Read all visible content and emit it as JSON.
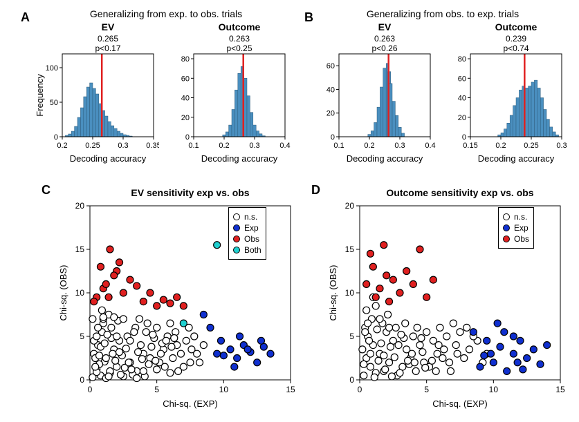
{
  "colors": {
    "bar_fill": "#4a8fbf",
    "bar_edge": "#2c5a7a",
    "vline": "#e02020",
    "ns_fill": "#ffffff",
    "exp_fill": "#1030d0",
    "obs_fill": "#e02020",
    "both_fill": "#20d0d0",
    "axis": "#000000"
  },
  "panelA": {
    "label": "A",
    "title": "Generalizing from exp. to obs. trials",
    "ev": {
      "subtitle": "EV",
      "stat1": "0.265",
      "stat2": "p<0.17",
      "xlabel": "Decoding accuracy",
      "ylabel": "Frequency",
      "xlim": [
        0.2,
        0.35
      ],
      "xticks": [
        0.2,
        0.25,
        0.3,
        0.35
      ],
      "ylim": [
        0,
        120
      ],
      "yticks": [
        0,
        50,
        100
      ],
      "vline": 0.265,
      "bins": [
        {
          "x": 0.205,
          "h": 2
        },
        {
          "x": 0.21,
          "h": 4
        },
        {
          "x": 0.215,
          "h": 8
        },
        {
          "x": 0.22,
          "h": 15
        },
        {
          "x": 0.225,
          "h": 28
        },
        {
          "x": 0.23,
          "h": 42
        },
        {
          "x": 0.235,
          "h": 58
        },
        {
          "x": 0.24,
          "h": 72
        },
        {
          "x": 0.245,
          "h": 78
        },
        {
          "x": 0.25,
          "h": 70
        },
        {
          "x": 0.255,
          "h": 62
        },
        {
          "x": 0.26,
          "h": 48
        },
        {
          "x": 0.265,
          "h": 38
        },
        {
          "x": 0.27,
          "h": 30
        },
        {
          "x": 0.275,
          "h": 22
        },
        {
          "x": 0.28,
          "h": 16
        },
        {
          "x": 0.285,
          "h": 12
        },
        {
          "x": 0.29,
          "h": 8
        },
        {
          "x": 0.295,
          "h": 5
        },
        {
          "x": 0.3,
          "h": 3
        },
        {
          "x": 0.305,
          "h": 2
        },
        {
          "x": 0.31,
          "h": 1
        }
      ],
      "bin_width": 0.005
    },
    "outcome": {
      "subtitle": "Outcome",
      "stat1": "0.263",
      "stat2": "p<0.25",
      "xlabel": "Decoding accuracy",
      "xlim": [
        0.1,
        0.4
      ],
      "xticks": [
        0.1,
        0.2,
        0.3,
        0.4
      ],
      "ylim": [
        0,
        85
      ],
      "yticks": [
        0,
        20,
        40,
        60,
        80
      ],
      "vline": 0.263,
      "bins": [
        {
          "x": 0.195,
          "h": 2
        },
        {
          "x": 0.205,
          "h": 5
        },
        {
          "x": 0.215,
          "h": 12
        },
        {
          "x": 0.225,
          "h": 28
        },
        {
          "x": 0.235,
          "h": 48
        },
        {
          "x": 0.245,
          "h": 65
        },
        {
          "x": 0.255,
          "h": 72
        },
        {
          "x": 0.265,
          "h": 60
        },
        {
          "x": 0.275,
          "h": 42
        },
        {
          "x": 0.285,
          "h": 25
        },
        {
          "x": 0.295,
          "h": 12
        },
        {
          "x": 0.305,
          "h": 6
        },
        {
          "x": 0.315,
          "h": 3
        },
        {
          "x": 0.325,
          "h": 1
        }
      ],
      "bin_width": 0.01
    }
  },
  "panelB": {
    "label": "B",
    "title": "Generalizing from obs. to exp. trials",
    "ev": {
      "subtitle": "EV",
      "stat1": "0.263",
      "stat2": "p<0.26",
      "xlabel": "Decoding accuracy",
      "xlim": [
        0.1,
        0.4
      ],
      "xticks": [
        0.1,
        0.2,
        0.3,
        0.4
      ],
      "ylim": [
        0,
        70
      ],
      "yticks": [
        0,
        20,
        40,
        60
      ],
      "vline": 0.263,
      "bins": [
        {
          "x": 0.195,
          "h": 2
        },
        {
          "x": 0.205,
          "h": 5
        },
        {
          "x": 0.215,
          "h": 12
        },
        {
          "x": 0.225,
          "h": 25
        },
        {
          "x": 0.235,
          "h": 42
        },
        {
          "x": 0.245,
          "h": 58
        },
        {
          "x": 0.255,
          "h": 62
        },
        {
          "x": 0.26,
          "h": 55
        },
        {
          "x": 0.265,
          "h": 45
        },
        {
          "x": 0.275,
          "h": 30
        },
        {
          "x": 0.285,
          "h": 18
        },
        {
          "x": 0.295,
          "h": 8
        },
        {
          "x": 0.305,
          "h": 3
        }
      ],
      "bin_width": 0.01
    },
    "outcome": {
      "subtitle": "Outcome",
      "stat1": "0.239",
      "stat2": "p<0.74",
      "xlabel": "Decoding accuracy",
      "xlim": [
        0.15,
        0.3
      ],
      "xticks": [
        0.15,
        0.2,
        0.25,
        0.3
      ],
      "ylim": [
        0,
        85
      ],
      "yticks": [
        0,
        20,
        40,
        60,
        80
      ],
      "vline": 0.239,
      "bins": [
        {
          "x": 0.195,
          "h": 2
        },
        {
          "x": 0.2,
          "h": 4
        },
        {
          "x": 0.205,
          "h": 8
        },
        {
          "x": 0.21,
          "h": 14
        },
        {
          "x": 0.215,
          "h": 22
        },
        {
          "x": 0.22,
          "h": 32
        },
        {
          "x": 0.225,
          "h": 40
        },
        {
          "x": 0.23,
          "h": 48
        },
        {
          "x": 0.235,
          "h": 52
        },
        {
          "x": 0.24,
          "h": 50
        },
        {
          "x": 0.245,
          "h": 52
        },
        {
          "x": 0.25,
          "h": 56
        },
        {
          "x": 0.255,
          "h": 58
        },
        {
          "x": 0.26,
          "h": 50
        },
        {
          "x": 0.265,
          "h": 40
        },
        {
          "x": 0.27,
          "h": 28
        },
        {
          "x": 0.275,
          "h": 18
        },
        {
          "x": 0.28,
          "h": 10
        },
        {
          "x": 0.285,
          "h": 5
        },
        {
          "x": 0.29,
          "h": 2
        }
      ],
      "bin_width": 0.005
    }
  },
  "panelC": {
    "label": "C",
    "title": "EV sensitivity exp vs. obs",
    "xlabel": "Chi-sq. (EXP)",
    "ylabel": "Chi-sq. (OBS)",
    "xlim": [
      0,
      15
    ],
    "ylim": [
      0,
      20
    ],
    "xticks": [
      0,
      5,
      10,
      15
    ],
    "yticks": [
      0,
      5,
      10,
      15,
      20
    ],
    "legend": [
      {
        "label": "n.s.",
        "fill": "#ffffff"
      },
      {
        "label": "Exp",
        "fill": "#1030d0"
      },
      {
        "label": "Obs",
        "fill": "#e02020"
      },
      {
        "label": "Both",
        "fill": "#20d0d0"
      }
    ],
    "points_ns": [
      [
        0.2,
        0.3
      ],
      [
        0.5,
        1.2
      ],
      [
        0.8,
        0.5
      ],
      [
        1.1,
        2.1
      ],
      [
        0.3,
        3.0
      ],
      [
        1.5,
        0.8
      ],
      [
        2.0,
        1.5
      ],
      [
        0.6,
        4.0
      ],
      [
        1.8,
        3.5
      ],
      [
        2.5,
        0.4
      ],
      [
        0.9,
        5.5
      ],
      [
        3.0,
        2.0
      ],
      [
        1.2,
        0.2
      ],
      [
        2.2,
        4.5
      ],
      [
        0.4,
        2.5
      ],
      [
        3.5,
        1.0
      ],
      [
        1.0,
        6.5
      ],
      [
        4.0,
        3.0
      ],
      [
        0.7,
        1.8
      ],
      [
        2.8,
        5.0
      ],
      [
        1.4,
        7.5
      ],
      [
        3.2,
        0.6
      ],
      [
        4.5,
        2.5
      ],
      [
        0.2,
        7.0
      ],
      [
        5.0,
        1.2
      ],
      [
        1.6,
        4.8
      ],
      [
        3.8,
        4.0
      ],
      [
        2.4,
        2.8
      ],
      [
        0.5,
        0.9
      ],
      [
        4.2,
        5.5
      ],
      [
        5.5,
        3.5
      ],
      [
        1.9,
        2.2
      ],
      [
        3.4,
        6.0
      ],
      [
        6.0,
        0.8
      ],
      [
        0.8,
        3.8
      ],
      [
        2.6,
        1.4
      ],
      [
        4.8,
        4.8
      ],
      [
        1.3,
        5.2
      ],
      [
        5.2,
        2.0
      ],
      [
        6.5,
        4.0
      ],
      [
        3.6,
        3.2
      ],
      [
        0.3,
        4.5
      ],
      [
        2.1,
        6.8
      ],
      [
        4.4,
        1.8
      ],
      [
        5.8,
        5.0
      ],
      [
        1.7,
        3.0
      ],
      [
        6.2,
        2.5
      ],
      [
        7.0,
        1.5
      ],
      [
        3.0,
        4.5
      ],
      [
        0.6,
        6.0
      ],
      [
        4.6,
        3.8
      ],
      [
        2.3,
        0.6
      ],
      [
        5.4,
        4.2
      ],
      [
        6.8,
        3.0
      ],
      [
        1.1,
        4.2
      ],
      [
        7.5,
        2.0
      ],
      [
        3.9,
        2.4
      ],
      [
        0.9,
        8.0
      ],
      [
        5.0,
        6.0
      ],
      [
        2.7,
        3.6
      ],
      [
        6.4,
        5.5
      ],
      [
        1.5,
        1.0
      ],
      [
        4.1,
        0.4
      ],
      [
        7.2,
        4.5
      ],
      [
        3.3,
        5.5
      ],
      [
        0.4,
        1.5
      ],
      [
        5.6,
        1.5
      ],
      [
        2.0,
        5.0
      ],
      [
        6.0,
        6.5
      ],
      [
        8.0,
        3.0
      ],
      [
        1.8,
        7.2
      ],
      [
        4.3,
        6.5
      ],
      [
        7.8,
        5.0
      ],
      [
        3.1,
        1.2
      ],
      [
        0.7,
        2.8
      ],
      [
        5.3,
        3.0
      ],
      [
        2.5,
        7.0
      ],
      [
        6.6,
        1.0
      ],
      [
        1.2,
        2.5
      ],
      [
        4.7,
        5.2
      ],
      [
        8.5,
        4.0
      ],
      [
        3.7,
        7.0
      ],
      [
        2.9,
        2.0
      ],
      [
        6.1,
        3.8
      ],
      [
        1.4,
        0.4
      ],
      [
        7.4,
        6.0
      ],
      [
        4.0,
        1.0
      ],
      [
        0.5,
        5.0
      ],
      [
        5.7,
        4.5
      ],
      [
        2.2,
        3.2
      ],
      [
        8.2,
        2.0
      ],
      [
        3.5,
        0.2
      ],
      [
        6.3,
        4.8
      ],
      [
        1.6,
        6.0
      ],
      [
        4.9,
        2.2
      ],
      [
        7.6,
        3.5
      ],
      [
        1.0,
        7.0
      ],
      [
        1.0,
        7.2
      ]
    ],
    "points_exp": [
      [
        9.5,
        3.0
      ],
      [
        10.0,
        2.8
      ],
      [
        10.5,
        3.5
      ],
      [
        11.0,
        2.5
      ],
      [
        11.5,
        4.0
      ],
      [
        12.0,
        3.2
      ],
      [
        12.5,
        2.0
      ],
      [
        13.0,
        3.8
      ],
      [
        11.2,
        5.0
      ],
      [
        10.8,
        1.5
      ],
      [
        12.8,
        4.5
      ],
      [
        9.8,
        4.5
      ],
      [
        13.5,
        3.0
      ],
      [
        11.8,
        3.5
      ],
      [
        8.5,
        7.5
      ],
      [
        9.0,
        6.0
      ]
    ],
    "points_obs": [
      [
        0.5,
        9.5
      ],
      [
        1.0,
        10.5
      ],
      [
        1.5,
        15.0
      ],
      [
        2.0,
        12.5
      ],
      [
        0.8,
        13.0
      ],
      [
        1.2,
        11.0
      ],
      [
        2.5,
        10.0
      ],
      [
        1.8,
        12.0
      ],
      [
        0.3,
        9.0
      ],
      [
        3.0,
        11.5
      ],
      [
        1.4,
        9.5
      ],
      [
        2.2,
        13.5
      ],
      [
        4.0,
        9.0
      ],
      [
        3.5,
        10.8
      ],
      [
        4.5,
        10.0
      ],
      [
        5.0,
        8.5
      ],
      [
        5.5,
        9.2
      ],
      [
        6.0,
        8.8
      ],
      [
        6.5,
        9.5
      ],
      [
        7.0,
        8.5
      ]
    ],
    "points_both": [
      [
        9.5,
        15.5
      ],
      [
        7.0,
        6.5
      ]
    ]
  },
  "panelD": {
    "label": "D",
    "title": "Outcome sensitivity exp vs. obs",
    "xlabel": "Chi-sq. (EXP)",
    "ylabel": "Chi-sq. (OBS)",
    "xlim": [
      0,
      15
    ],
    "ylim": [
      0,
      20
    ],
    "xticks": [
      0,
      5,
      10,
      15
    ],
    "yticks": [
      0,
      5,
      10,
      15,
      20
    ],
    "legend": [
      {
        "label": "n.s.",
        "fill": "#ffffff"
      },
      {
        "label": "Exp",
        "fill": "#1030d0"
      },
      {
        "label": "Obs",
        "fill": "#e02020"
      }
    ],
    "points_ns": [
      [
        0.3,
        0.5
      ],
      [
        0.8,
        1.5
      ],
      [
        1.2,
        0.8
      ],
      [
        0.5,
        2.5
      ],
      [
        1.8,
        1.0
      ],
      [
        0.2,
        3.5
      ],
      [
        2.2,
        2.0
      ],
      [
        1.0,
        4.0
      ],
      [
        2.8,
        0.5
      ],
      [
        0.6,
        5.0
      ],
      [
        3.2,
        1.5
      ],
      [
        1.5,
        3.0
      ],
      [
        0.4,
        6.0
      ],
      [
        2.5,
        4.5
      ],
      [
        3.8,
        2.5
      ],
      [
        1.1,
        0.3
      ],
      [
        4.2,
        1.0
      ],
      [
        0.9,
        7.0
      ],
      [
        2.0,
        5.5
      ],
      [
        3.5,
        3.5
      ],
      [
        4.8,
        2.0
      ],
      [
        1.4,
        2.2
      ],
      [
        0.7,
        4.5
      ],
      [
        5.2,
        1.5
      ],
      [
        2.7,
        6.0
      ],
      [
        3.0,
        0.8
      ],
      [
        4.5,
        4.0
      ],
      [
        1.7,
        6.5
      ],
      [
        5.8,
        3.0
      ],
      [
        0.3,
        1.8
      ],
      [
        2.3,
        3.8
      ],
      [
        6.2,
        2.5
      ],
      [
        4.0,
        5.0
      ],
      [
        1.9,
        1.2
      ],
      [
        3.3,
        4.8
      ],
      [
        5.5,
        4.5
      ],
      [
        0.5,
        8.0
      ],
      [
        6.8,
        1.0
      ],
      [
        2.6,
        2.6
      ],
      [
        4.7,
        3.2
      ],
      [
        1.3,
        5.8
      ],
      [
        7.2,
        4.0
      ],
      [
        3.7,
        1.8
      ],
      [
        5.0,
        5.5
      ],
      [
        0.8,
        3.0
      ],
      [
        6.5,
        5.0
      ],
      [
        2.1,
        7.5
      ],
      [
        7.8,
        2.5
      ],
      [
        4.3,
        6.0
      ],
      [
        1.6,
        4.2
      ],
      [
        8.2,
        3.5
      ],
      [
        3.9,
        3.0
      ],
      [
        5.4,
        2.2
      ],
      [
        6.0,
        6.0
      ],
      [
        2.4,
        0.4
      ],
      [
        7.5,
        5.5
      ],
      [
        4.1,
        2.0
      ],
      [
        0.6,
        6.5
      ],
      [
        8.8,
        4.5
      ],
      [
        3.1,
        5.2
      ],
      [
        5.7,
        1.0
      ],
      [
        1.2,
        8.5
      ],
      [
        6.3,
        3.5
      ],
      [
        2.9,
        4.0
      ],
      [
        9.2,
        2.0
      ],
      [
        4.6,
        4.8
      ],
      [
        7.0,
        6.5
      ],
      [
        1.8,
        2.8
      ],
      [
        8.5,
        5.0
      ],
      [
        3.4,
        6.5
      ],
      [
        5.9,
        4.0
      ],
      [
        0.4,
        5.5
      ],
      [
        6.7,
        2.0
      ],
      [
        2.2,
        6.0
      ],
      [
        9.5,
        3.0
      ],
      [
        4.9,
        1.4
      ],
      [
        7.3,
        3.0
      ],
      [
        1.5,
        7.0
      ],
      [
        8.0,
        6.0
      ],
      [
        3.6,
        2.2
      ],
      [
        1.0,
        9.5
      ]
    ],
    "points_exp": [
      [
        9.0,
        1.5
      ],
      [
        9.5,
        4.5
      ],
      [
        10.0,
        2.0
      ],
      [
        10.5,
        3.8
      ],
      [
        11.0,
        1.0
      ],
      [
        11.5,
        3.0
      ],
      [
        12.0,
        4.5
      ],
      [
        12.5,
        2.5
      ],
      [
        13.0,
        3.5
      ],
      [
        13.5,
        1.8
      ],
      [
        10.8,
        5.5
      ],
      [
        11.8,
        2.0
      ],
      [
        9.8,
        3.0
      ],
      [
        12.2,
        1.2
      ],
      [
        10.3,
        6.5
      ],
      [
        14.0,
        4.0
      ],
      [
        9.3,
        2.8
      ],
      [
        8.5,
        5.5
      ],
      [
        11.5,
        5.0
      ]
    ],
    "points_obs": [
      [
        0.5,
        11.0
      ],
      [
        1.0,
        13.0
      ],
      [
        1.5,
        10.5
      ],
      [
        2.0,
        12.0
      ],
      [
        0.8,
        14.5
      ],
      [
        2.5,
        11.5
      ],
      [
        1.2,
        9.5
      ],
      [
        3.0,
        10.0
      ],
      [
        1.8,
        15.5
      ],
      [
        3.5,
        12.5
      ],
      [
        2.2,
        9.0
      ],
      [
        4.0,
        11.0
      ],
      [
        4.5,
        15.0
      ],
      [
        5.0,
        9.5
      ],
      [
        5.5,
        11.5
      ]
    ],
    "points_both": []
  }
}
